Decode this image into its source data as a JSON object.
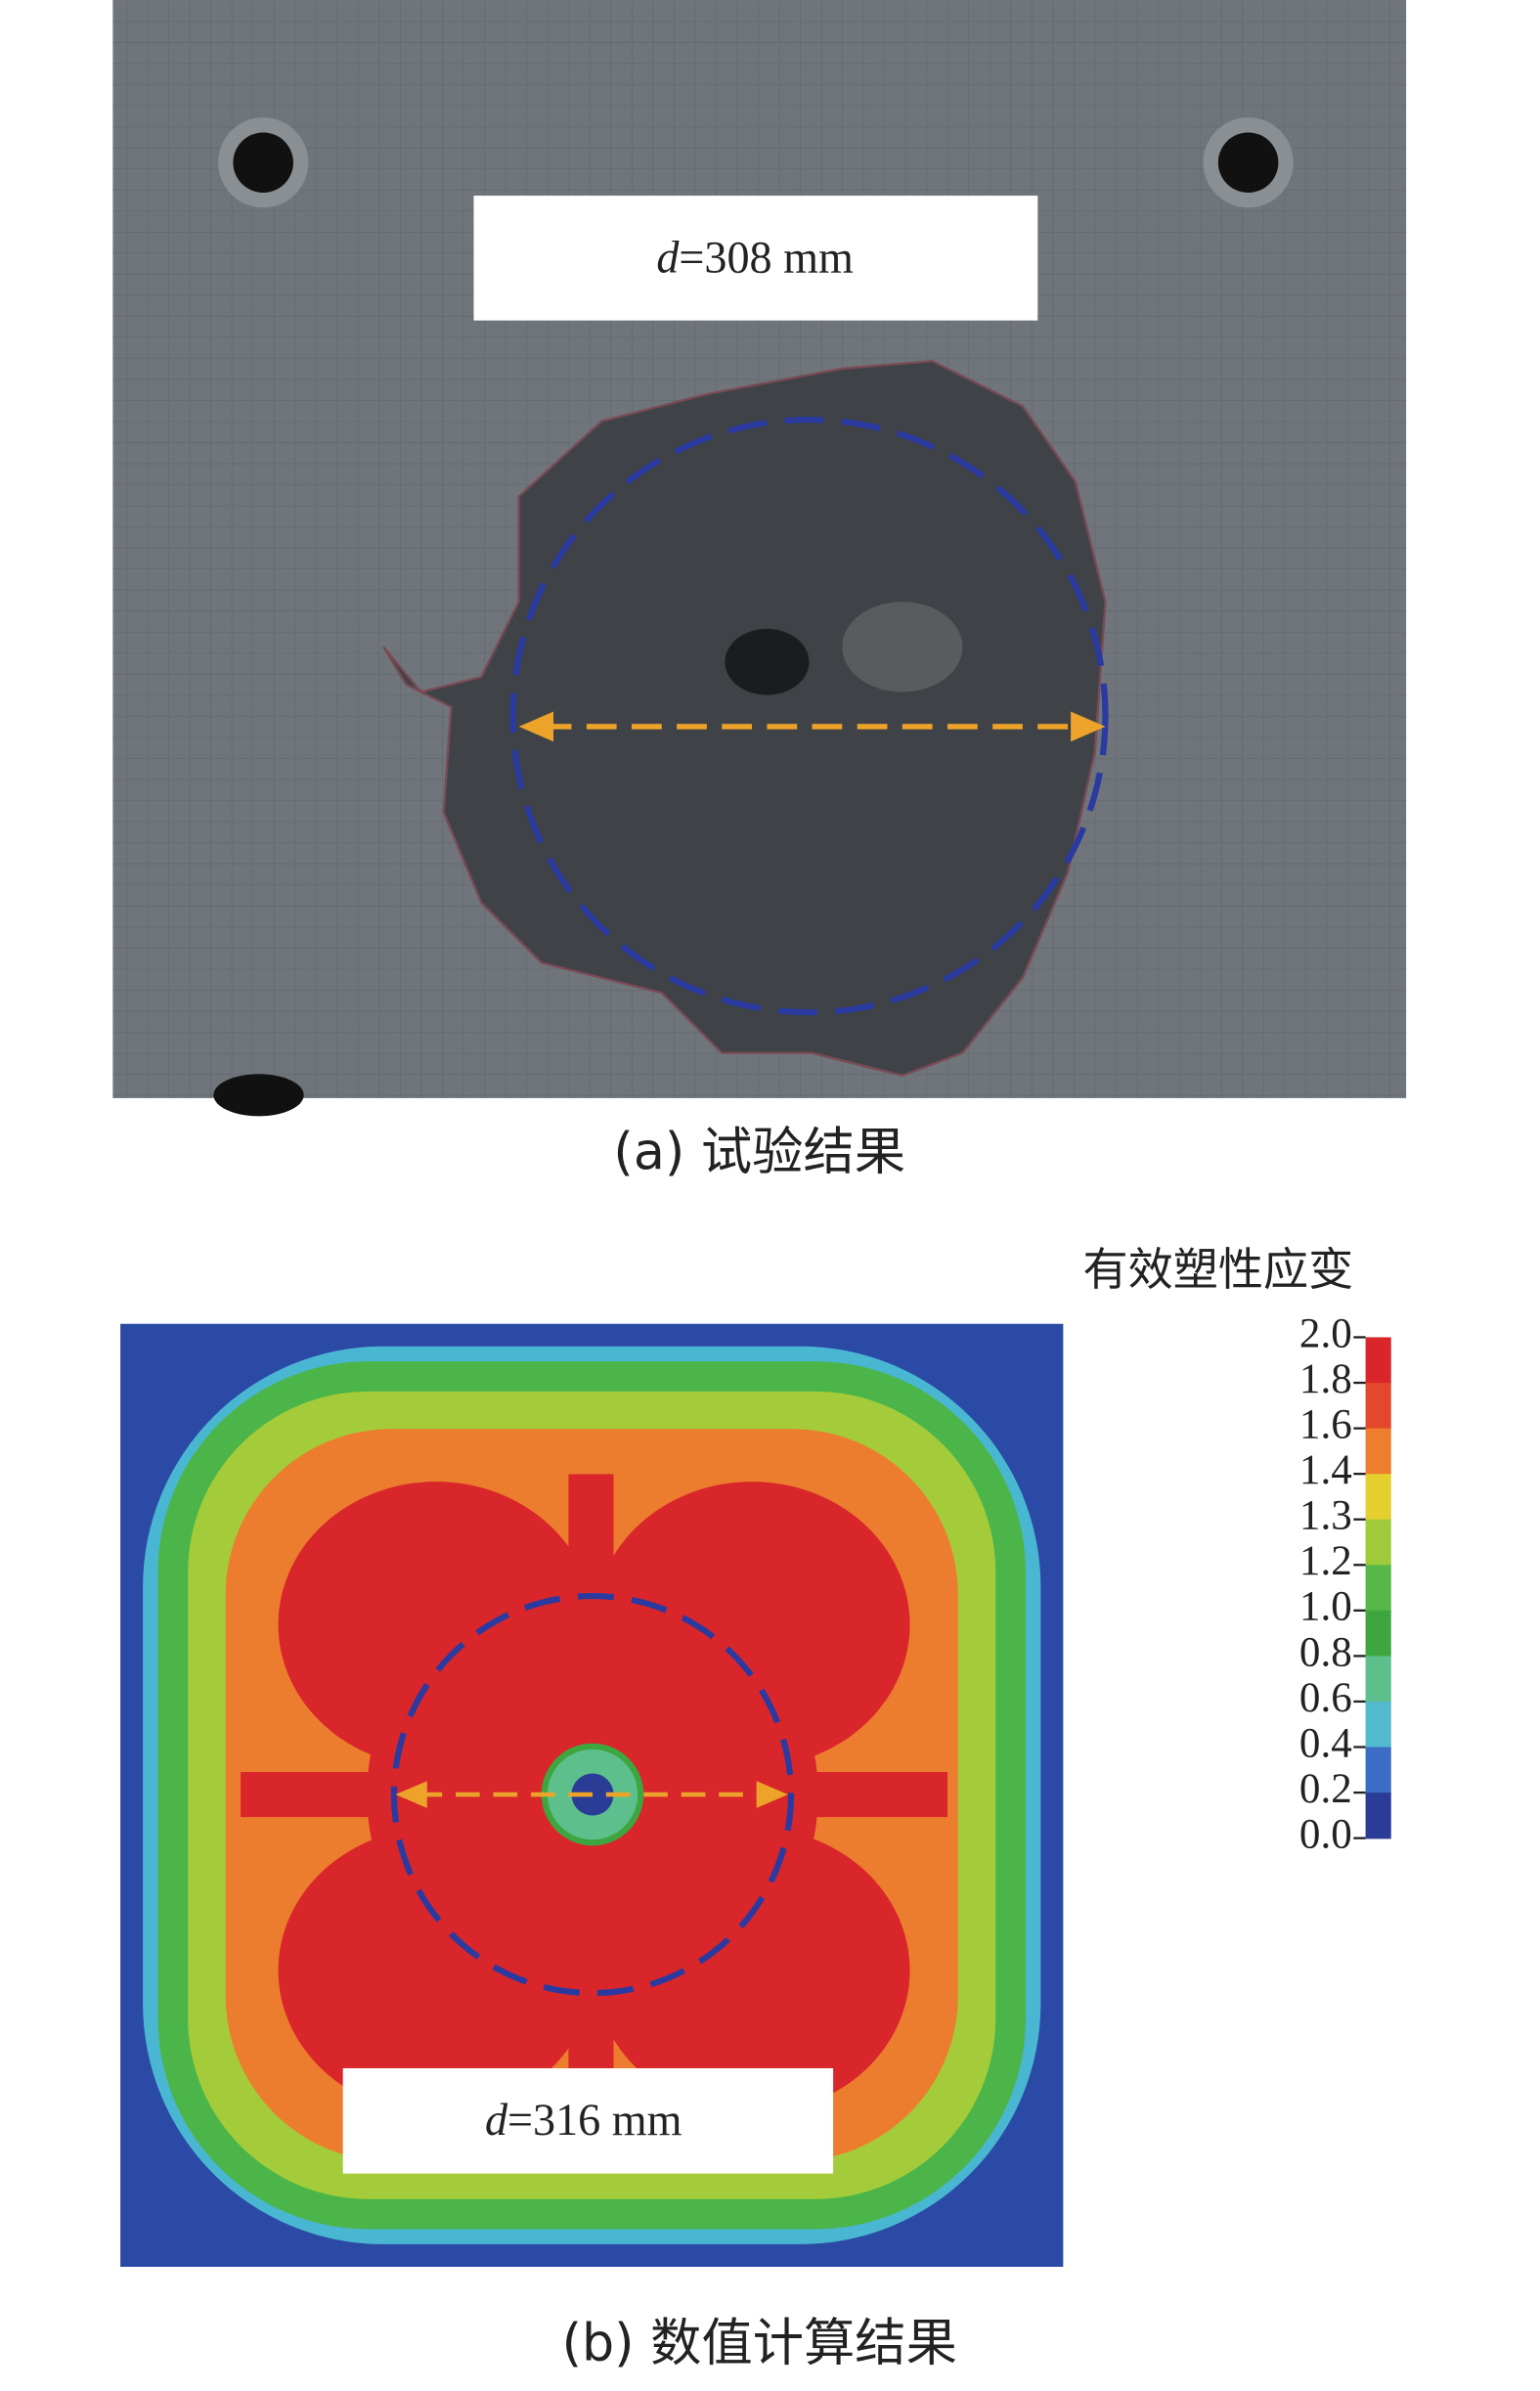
{
  "panel_a": {
    "label": {
      "symbol": "d",
      "text": "=308 mm"
    },
    "caption": "(a) 试验结果"
  },
  "panel_b": {
    "label": {
      "symbol": "d",
      "text": "=316 mm"
    },
    "caption": "(b) 数值计算结果"
  },
  "colorbar": {
    "title": "有效塑性应变",
    "ticks": [
      "2.0",
      "1.8",
      "1.6",
      "1.4",
      "1.3",
      "1.2",
      "1.0",
      "0.8",
      "0.6",
      "0.4",
      "0.2",
      "0.0"
    ],
    "colors": [
      "#d8262a",
      "#e2482c",
      "#ef7d2e",
      "#e3cf2e",
      "#9fcb3a",
      "#55b848",
      "#3ea63e",
      "#5cbf8c",
      "#52b9cf",
      "#3b6cc6",
      "#2b3c97"
    ]
  }
}
